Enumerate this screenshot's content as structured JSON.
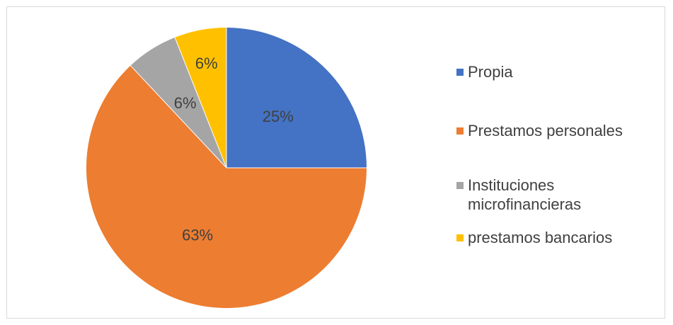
{
  "chart_data": {
    "type": "pie",
    "title": "",
    "categories": [
      "Propia",
      "Prestamos personales",
      "Instituciones microfinancieras",
      "prestamos bancarios"
    ],
    "legend_labels": [
      "Propia",
      "Prestamos personales",
      "Instituciones\nmicrofinancieras",
      "prestamos bancarios"
    ],
    "values": [
      25,
      63,
      6,
      6
    ],
    "data_labels": [
      "25%",
      "63%",
      "6%",
      "6%"
    ],
    "colors": [
      "#4472c4",
      "#ed7d31",
      "#a5a5a5",
      "#ffc000"
    ],
    "legend_position": "right"
  }
}
